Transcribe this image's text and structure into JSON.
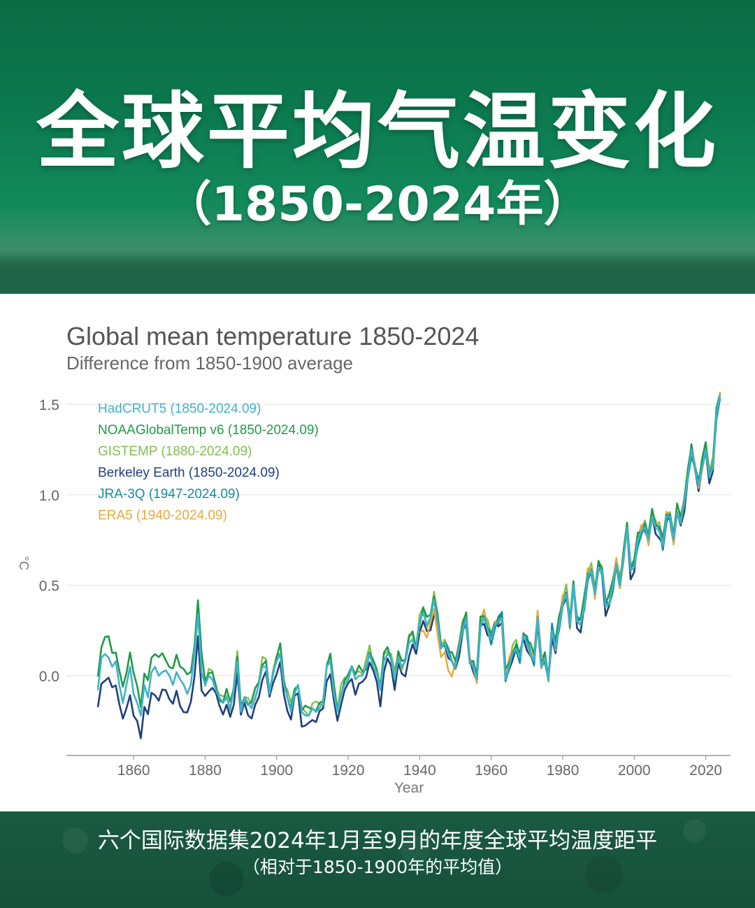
{
  "header": {
    "title": "全球平均气温变化",
    "subtitle": "（1850-2024年）"
  },
  "footer": {
    "caption": "六个国际数据集2024年1月至9月的年度全球平均温度距平",
    "note": "（相对于1850-1900年的平均值）"
  },
  "colors": {
    "HadCRUT5": "#3fb3c9",
    "NOAAGlobalTemp v6": "#1f9a4a",
    "GISTEMP": "#7fbf4f",
    "Berkeley Earth": "#1f3f7f",
    "JRA-3Q": "#148f9a",
    "ERA5": "#e8a93a"
  },
  "chart_data": {
    "type": "line",
    "title": "Global mean temperature 1850-2024",
    "subtitle": "Difference from 1850-1900 average",
    "xlabel": "Year",
    "ylabel": "°C",
    "xlim": [
      1845,
      2027
    ],
    "ylim": [
      -0.45,
      1.6
    ],
    "x_ticks": [
      "1860",
      "1880",
      "1900",
      "1920",
      "1940",
      "1960",
      "1980",
      "2000",
      "2020"
    ],
    "y_ticks": [
      "0.0",
      "0.5",
      "1.0",
      "1.5"
    ],
    "grid": "horizontal",
    "legend_position": "top-left",
    "legend": [
      "HadCRUT5 (1850-2024.09)",
      "NOAAGlobalTemp v6 (1850-2024.09)",
      "GISTEMP (1880-2024.09)",
      "Berkeley Earth (1850-2024.09)",
      "JRA-3Q (1947-2024.09)",
      "ERA5 (1940-2024.09)"
    ],
    "base_series": {
      "name": "HadCRUT5",
      "x": [
        1850,
        1851,
        1852,
        1853,
        1854,
        1855,
        1856,
        1857,
        1858,
        1859,
        1860,
        1861,
        1862,
        1863,
        1864,
        1865,
        1866,
        1867,
        1868,
        1869,
        1870,
        1871,
        1872,
        1873,
        1874,
        1875,
        1876,
        1877,
        1878,
        1879,
        1880,
        1881,
        1882,
        1883,
        1884,
        1885,
        1886,
        1887,
        1888,
        1889,
        1890,
        1891,
        1892,
        1893,
        1894,
        1895,
        1896,
        1897,
        1898,
        1899,
        1900,
        1901,
        1902,
        1903,
        1904,
        1905,
        1906,
        1907,
        1908,
        1909,
        1910,
        1911,
        1912,
        1913,
        1914,
        1915,
        1916,
        1917,
        1918,
        1919,
        1920,
        1921,
        1922,
        1923,
        1924,
        1925,
        1926,
        1927,
        1928,
        1929,
        1930,
        1931,
        1932,
        1933,
        1934,
        1935,
        1936,
        1937,
        1938,
        1939,
        1940,
        1941,
        1942,
        1943,
        1944,
        1945,
        1946,
        1947,
        1948,
        1949,
        1950,
        1951,
        1952,
        1953,
        1954,
        1955,
        1956,
        1957,
        1958,
        1959,
        1960,
        1961,
        1962,
        1963,
        1964,
        1965,
        1966,
        1967,
        1968,
        1969,
        1970,
        1971,
        1972,
        1973,
        1974,
        1975,
        1976,
        1977,
        1978,
        1979,
        1980,
        1981,
        1982,
        1983,
        1984,
        1985,
        1986,
        1987,
        1988,
        1989,
        1990,
        1991,
        1992,
        1993,
        1994,
        1995,
        1996,
        1997,
        1998,
        1999,
        2000,
        2001,
        2002,
        2003,
        2004,
        2005,
        2006,
        2007,
        2008,
        2009,
        2010,
        2011,
        2012,
        2013,
        2014,
        2015,
        2016,
        2017,
        2018,
        2019,
        2020,
        2021,
        2022,
        2023,
        2024
      ],
      "values": [
        -0.08,
        0.1,
        0.12,
        0.1,
        0.05,
        0.08,
        -0.05,
        -0.15,
        -0.05,
        0.05,
        -0.1,
        -0.15,
        -0.22,
        -0.05,
        -0.12,
        0.02,
        0.05,
        0.0,
        0.02,
        0.03,
        0.0,
        -0.05,
        0.02,
        -0.02,
        -0.05,
        -0.1,
        -0.05,
        0.12,
        0.34,
        0.02,
        -0.05,
        0.0,
        -0.02,
        -0.08,
        -0.12,
        -0.15,
        -0.12,
        -0.18,
        -0.08,
        0.08,
        -0.2,
        -0.12,
        -0.15,
        -0.18,
        -0.12,
        -0.05,
        0.05,
        0.05,
        -0.1,
        0.02,
        0.08,
        0.12,
        -0.05,
        -0.12,
        -0.2,
        -0.1,
        -0.05,
        -0.2,
        -0.22,
        -0.22,
        -0.18,
        -0.2,
        -0.18,
        -0.15,
        0.05,
        0.08,
        -0.1,
        -0.2,
        -0.1,
        -0.05,
        -0.02,
        0.05,
        -0.02,
        0.0,
        0.0,
        0.05,
        0.12,
        0.05,
        0.02,
        -0.08,
        0.08,
        0.12,
        0.1,
        -0.02,
        0.1,
        0.05,
        0.08,
        0.18,
        0.2,
        0.15,
        0.3,
        0.35,
        0.28,
        0.32,
        0.42,
        0.3,
        0.15,
        0.18,
        0.12,
        0.08,
        0.05,
        0.15,
        0.25,
        0.32,
        0.08,
        0.05,
        -0.02,
        0.28,
        0.32,
        0.25,
        0.2,
        0.28,
        0.3,
        0.32,
        -0.02,
        0.05,
        0.12,
        0.15,
        0.1,
        0.22,
        0.18,
        0.12,
        0.08,
        0.32,
        0.05,
        0.1,
        -0.02,
        0.25,
        0.15,
        0.28,
        0.4,
        0.45,
        0.28,
        0.5,
        0.3,
        0.28,
        0.38,
        0.55,
        0.58,
        0.45,
        0.6,
        0.58,
        0.38,
        0.4,
        0.5,
        0.62,
        0.5,
        0.65,
        0.82,
        0.58,
        0.6,
        0.75,
        0.8,
        0.82,
        0.75,
        0.88,
        0.82,
        0.8,
        0.72,
        0.88,
        0.88,
        0.75,
        0.9,
        0.85,
        0.95,
        1.1,
        1.25,
        1.15,
        1.05,
        1.15,
        1.25,
        1.1,
        1.15,
        1.45,
        1.55
      ]
    }
  }
}
